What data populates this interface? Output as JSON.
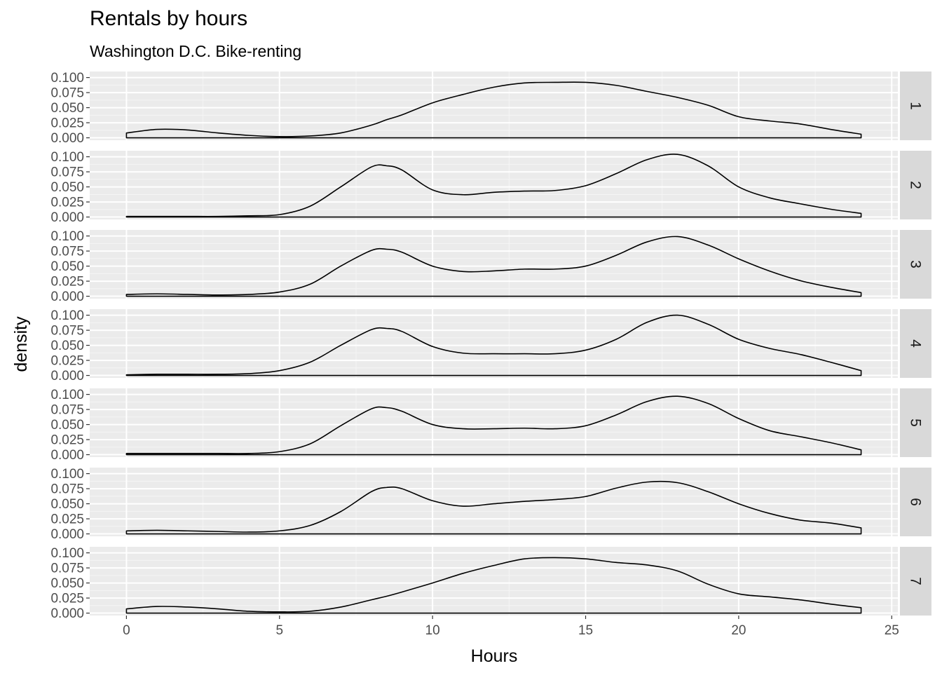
{
  "chart_data": {
    "type": "area",
    "title": "Rentals by hours",
    "subtitle": "Washington D.C. Bike-renting",
    "xlabel": "Hours",
    "ylabel": "density",
    "xlim": [
      -1.2,
      25.2
    ],
    "ylim": [
      -0.004,
      0.11
    ],
    "x_ticks": [
      "0",
      "5",
      "10",
      "15",
      "20",
      "25"
    ],
    "x_tick_values": [
      0,
      5,
      10,
      15,
      20,
      25
    ],
    "y_ticks": [
      "0.000",
      "0.025",
      "0.050",
      "0.075",
      "0.100"
    ],
    "y_tick_values": [
      0,
      0.025,
      0.05,
      0.075,
      0.1
    ],
    "grid": true,
    "facet_strip": "right",
    "x": [
      0,
      1,
      2,
      3,
      4,
      5,
      6,
      7,
      8,
      8.5,
      9,
      10,
      11,
      12,
      13,
      14,
      15,
      16,
      17,
      18,
      19,
      20,
      21,
      22,
      23,
      24
    ],
    "series": [
      {
        "name": "1",
        "values": [
          0.008,
          0.014,
          0.013,
          0.008,
          0.004,
          0.002,
          0.003,
          0.008,
          0.021,
          0.03,
          0.038,
          0.058,
          0.072,
          0.084,
          0.091,
          0.092,
          0.092,
          0.087,
          0.077,
          0.067,
          0.054,
          0.035,
          0.028,
          0.023,
          0.014,
          0.006
        ]
      },
      {
        "name": "2",
        "values": [
          0.001,
          0.001,
          0.001,
          0.001,
          0.002,
          0.004,
          0.018,
          0.05,
          0.083,
          0.085,
          0.078,
          0.045,
          0.037,
          0.041,
          0.043,
          0.044,
          0.052,
          0.072,
          0.095,
          0.104,
          0.085,
          0.05,
          0.032,
          0.022,
          0.013,
          0.006
        ]
      },
      {
        "name": "3",
        "values": [
          0.003,
          0.004,
          0.003,
          0.002,
          0.003,
          0.007,
          0.02,
          0.05,
          0.076,
          0.078,
          0.073,
          0.05,
          0.041,
          0.042,
          0.045,
          0.045,
          0.05,
          0.068,
          0.09,
          0.099,
          0.085,
          0.062,
          0.042,
          0.026,
          0.015,
          0.006
        ]
      },
      {
        "name": "4",
        "values": [
          0.001,
          0.002,
          0.002,
          0.002,
          0.003,
          0.008,
          0.022,
          0.05,
          0.076,
          0.078,
          0.073,
          0.048,
          0.037,
          0.036,
          0.036,
          0.036,
          0.042,
          0.06,
          0.088,
          0.1,
          0.085,
          0.06,
          0.045,
          0.035,
          0.022,
          0.008
        ]
      },
      {
        "name": "5",
        "values": [
          0.002,
          0.002,
          0.002,
          0.002,
          0.002,
          0.005,
          0.018,
          0.048,
          0.076,
          0.078,
          0.072,
          0.05,
          0.043,
          0.043,
          0.044,
          0.043,
          0.048,
          0.066,
          0.088,
          0.097,
          0.085,
          0.06,
          0.04,
          0.03,
          0.02,
          0.008
        ]
      },
      {
        "name": "6",
        "values": [
          0.005,
          0.006,
          0.005,
          0.004,
          0.003,
          0.005,
          0.014,
          0.037,
          0.07,
          0.077,
          0.075,
          0.055,
          0.046,
          0.05,
          0.054,
          0.057,
          0.062,
          0.076,
          0.086,
          0.085,
          0.07,
          0.05,
          0.034,
          0.023,
          0.018,
          0.01
        ]
      },
      {
        "name": "7",
        "values": [
          0.007,
          0.011,
          0.01,
          0.007,
          0.003,
          0.002,
          0.003,
          0.01,
          0.022,
          0.028,
          0.035,
          0.05,
          0.066,
          0.079,
          0.09,
          0.092,
          0.09,
          0.084,
          0.08,
          0.07,
          0.048,
          0.032,
          0.027,
          0.022,
          0.015,
          0.009
        ]
      }
    ]
  }
}
